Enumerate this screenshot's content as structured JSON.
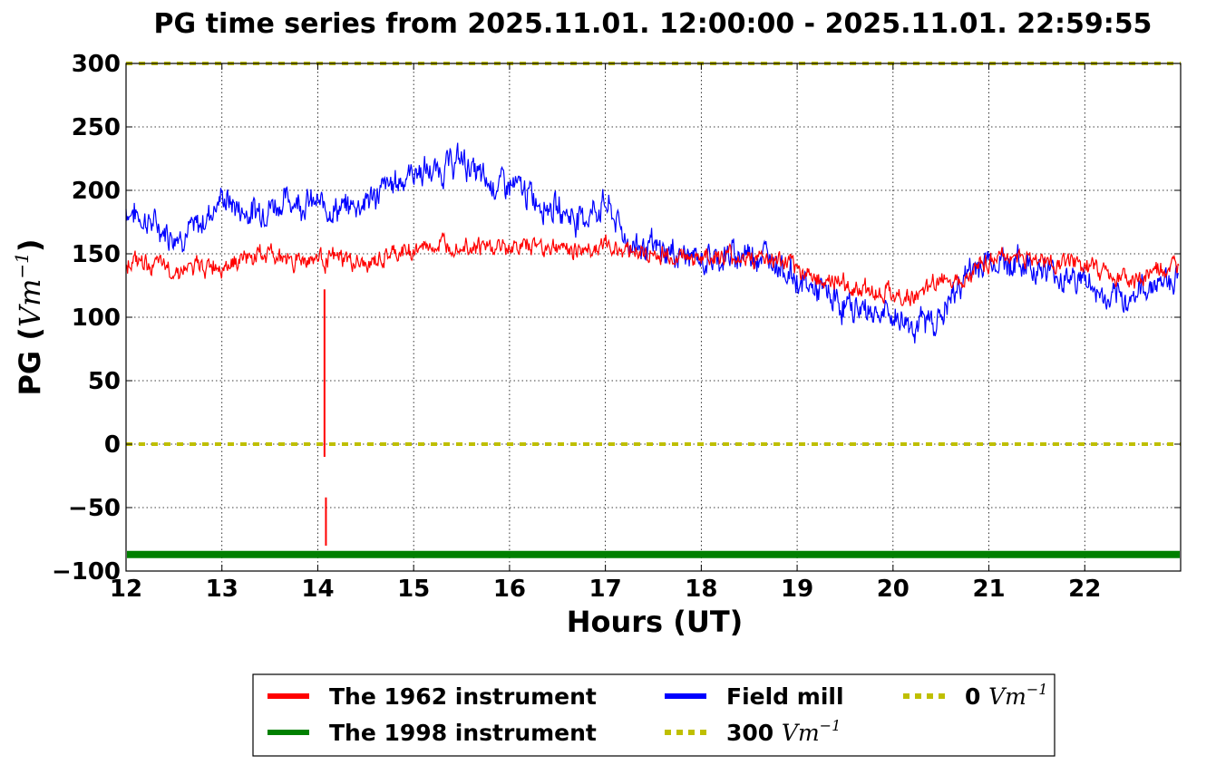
{
  "chart_data": {
    "type": "line",
    "title": "PG time series from 2025.11.01. 12:00:00 - 2025.11.01. 22:59:55",
    "xlabel": "Hours (UT)",
    "ylabel": "PG (",
    "ylabel_unit": "Vm",
    "ylabel_exp": "−1",
    "ylabel_close": ")",
    "xlim": [
      12,
      23
    ],
    "ylim": [
      -100,
      300
    ],
    "grid": true,
    "x_ticks": [
      12,
      13,
      14,
      15,
      16,
      17,
      18,
      19,
      20,
      21,
      22
    ],
    "x_tick_labels": [
      "12",
      "13",
      "14",
      "15",
      "16",
      "17",
      "18",
      "19",
      "20",
      "21",
      "22"
    ],
    "y_ticks": [
      300,
      250,
      200,
      150,
      100,
      50,
      0,
      -50,
      -100
    ],
    "y_tick_labels": [
      "300",
      "250",
      "200",
      "150",
      "100",
      "50",
      "0",
      "−50",
      "−100"
    ],
    "legend_position": "bottom-center",
    "series": [
      {
        "name": "The 1962 instrument",
        "color": "#ff0000",
        "style": "solid",
        "x": [
          12.0,
          12.25,
          12.5,
          12.75,
          13.0,
          13.25,
          13.5,
          13.75,
          14.0,
          14.25,
          14.5,
          14.75,
          15.0,
          15.25,
          15.5,
          15.75,
          16.0,
          16.25,
          16.5,
          16.75,
          17.0,
          17.25,
          17.5,
          17.75,
          18.0,
          18.25,
          18.5,
          18.75,
          19.0,
          19.25,
          19.5,
          19.75,
          20.0,
          20.25,
          20.5,
          20.75,
          21.0,
          21.25,
          21.5,
          21.75,
          22.0,
          22.25,
          22.5,
          22.75,
          22.98
        ],
        "values": [
          145,
          142,
          137,
          139,
          142,
          147,
          150,
          145,
          147,
          146,
          140,
          148,
          153,
          157,
          159,
          155,
          155,
          157,
          155,
          153,
          156,
          154,
          148,
          148,
          148,
          147,
          147,
          145,
          138,
          130,
          125,
          122,
          118,
          115,
          130,
          133,
          145,
          149,
          145,
          143,
          141,
          135,
          128,
          136,
          138
        ],
        "spikes": [
          {
            "x": 14.07,
            "from": 122,
            "to": -10
          },
          {
            "x": 14.085,
            "from": -42,
            "to": -80
          }
        ]
      },
      {
        "name": "The 1998 instrument",
        "color": "#008000",
        "style": "solid",
        "x": [
          12,
          23
        ],
        "values": [
          -87,
          -87
        ]
      },
      {
        "name": "Field mill",
        "color": "#0000ff",
        "style": "solid",
        "x": [
          12.0,
          12.25,
          12.5,
          12.75,
          13.0,
          13.25,
          13.5,
          13.75,
          14.0,
          14.25,
          14.5,
          14.75,
          15.0,
          15.25,
          15.5,
          15.75,
          16.0,
          16.25,
          16.5,
          16.75,
          17.0,
          17.25,
          17.5,
          17.75,
          18.0,
          18.25,
          18.5,
          18.75,
          19.0,
          19.25,
          19.5,
          19.75,
          20.0,
          20.25,
          20.5,
          20.75,
          21.0,
          21.25,
          21.5,
          21.75,
          22.0,
          22.25,
          22.5,
          22.75,
          22.98
        ],
        "values": [
          185,
          175,
          165,
          170,
          195,
          182,
          188,
          193,
          188,
          185,
          192,
          203,
          215,
          215,
          225,
          205,
          204,
          195,
          185,
          177,
          190,
          158,
          153,
          150,
          145,
          147,
          151,
          148,
          128,
          120,
          108,
          106,
          100,
          94,
          100,
          133,
          146,
          143,
          140,
          132,
          130,
          110,
          117,
          128,
          132
        ]
      },
      {
        "name": "300 Vm−1",
        "color": "#bfbf00",
        "style": "dotted",
        "x": [
          12,
          23
        ],
        "values": [
          300,
          300
        ]
      },
      {
        "name": "0 Vm−1",
        "color": "#bfbf00",
        "style": "dotted",
        "x": [
          12,
          23
        ],
        "values": [
          0,
          0
        ]
      }
    ],
    "legend": [
      {
        "prefix": "The 1962 instrument",
        "unit": "",
        "exp": "",
        "color": "#ff0000",
        "style": "solid"
      },
      {
        "prefix": "The 1998 instrument",
        "unit": "",
        "exp": "",
        "color": "#008000",
        "style": "solid"
      },
      {
        "prefix": "Field mill",
        "unit": "",
        "exp": "",
        "color": "#0000ff",
        "style": "solid"
      },
      {
        "prefix": "300 ",
        "unit": "Vm",
        "exp": "−1",
        "color": "#bfbf00",
        "style": "dotted"
      },
      {
        "prefix": "0 ",
        "unit": "Vm",
        "exp": "−1",
        "color": "#bfbf00",
        "style": "dotted"
      }
    ]
  }
}
